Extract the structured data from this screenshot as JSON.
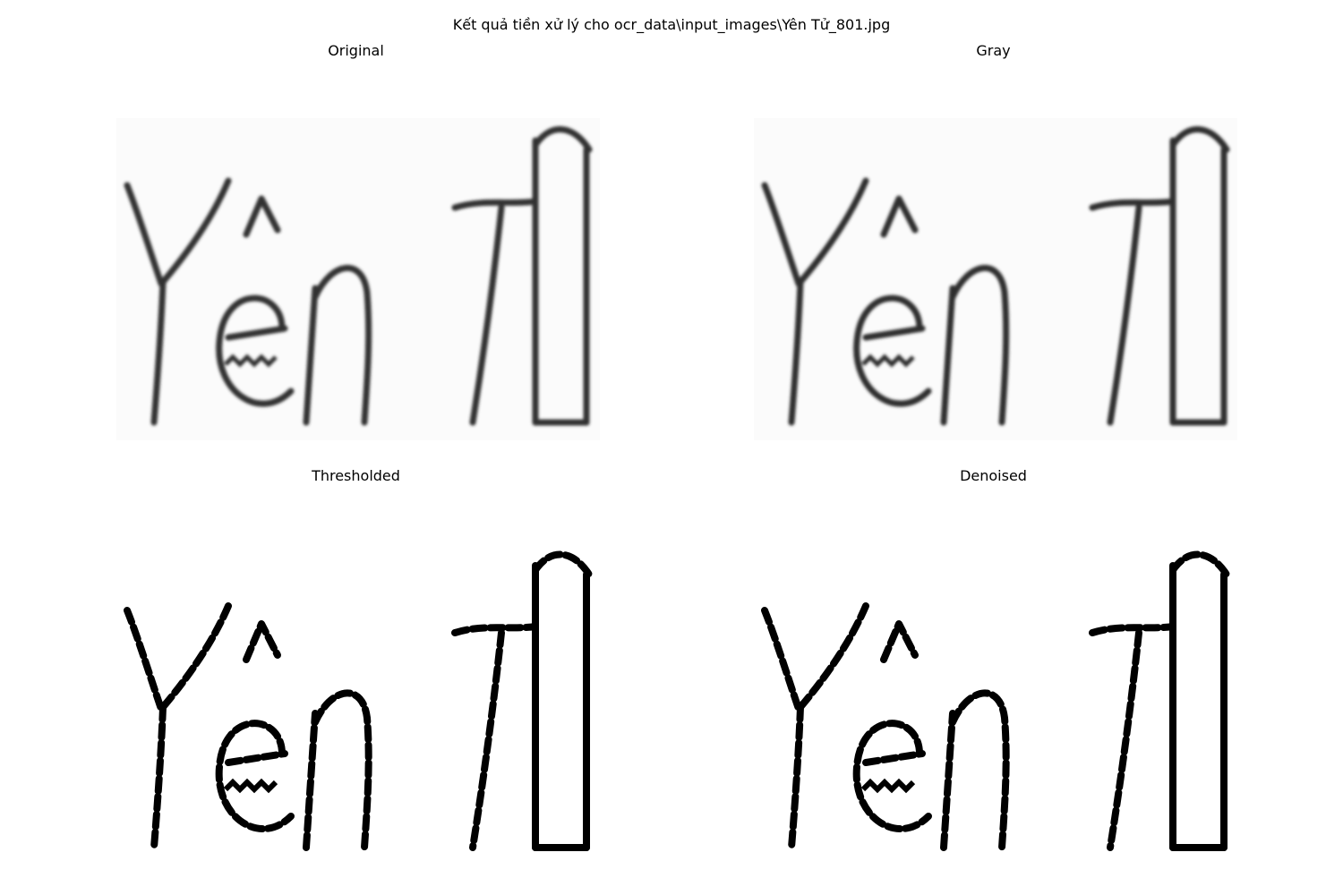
{
  "figure": {
    "title": "Kết quả tiền xử lý cho ocr_data\\input_images\\Yên Tử_801.jpg"
  },
  "panels": [
    {
      "title": "Original",
      "style": "soft",
      "ink": "#303030"
    },
    {
      "title": "Gray",
      "style": "soft",
      "ink": "#2e2e2e"
    },
    {
      "title": "Thresholded",
      "style": "binary",
      "ink": "#000000"
    },
    {
      "title": "Denoised",
      "style": "binary",
      "ink": "#000000"
    }
  ]
}
